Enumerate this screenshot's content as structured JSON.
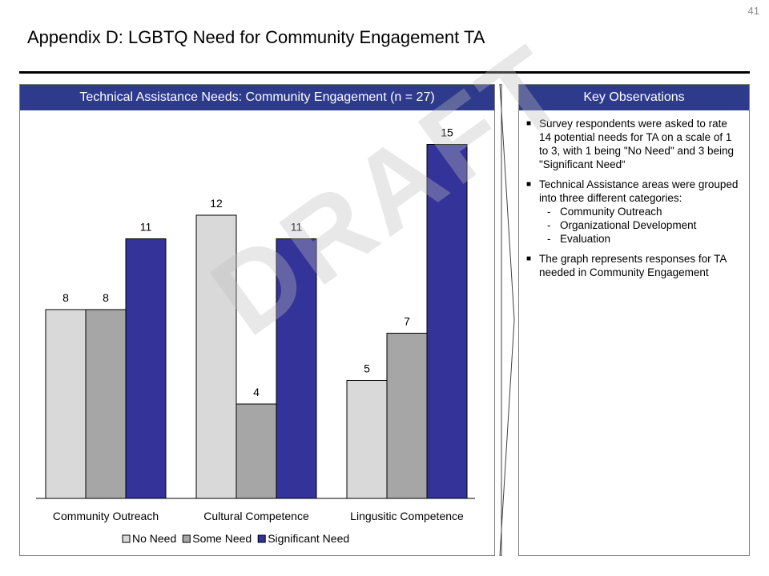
{
  "page_number": "41",
  "page_title": "Appendix D: LGBTQ Need for Community Engagement TA",
  "chart_panel": {
    "header": "Technical Assistance Needs: Community Engagement (n = 27)"
  },
  "observations_panel": {
    "header": "Key Observations",
    "bullets": [
      {
        "text": "Survey respondents were asked to rate 14 potential needs for TA on a scale of 1 to 3, with 1 being \"No Need\" and 3 being \"Significant Need“"
      },
      {
        "text": "Technical Assistance areas were grouped into three different categories:",
        "subitems": [
          "Community Outreach",
          "Organizational Development",
          "Evaluation"
        ]
      },
      {
        "text": "The graph represents responses for TA needed in Community Engagement"
      }
    ]
  },
  "watermark": "DRAFT",
  "chart_data": {
    "type": "bar",
    "title": "Technical Assistance Needs: Community Engagement (n = 27)",
    "categories": [
      "Community Outreach",
      "Cultural Competence",
      "Lingusitic Competence"
    ],
    "series": [
      {
        "name": "No Need",
        "values": [
          8,
          12,
          5
        ],
        "color": "#d9d9d9"
      },
      {
        "name": "Some Need",
        "values": [
          8,
          4,
          7
        ],
        "color": "#a6a6a6"
      },
      {
        "name": "Significant Need",
        "values": [
          11,
          11,
          15
        ],
        "color": "#333399"
      }
    ],
    "ylim": [
      0,
      16
    ],
    "grid": false,
    "data_labels": true,
    "legend": "bottom"
  }
}
